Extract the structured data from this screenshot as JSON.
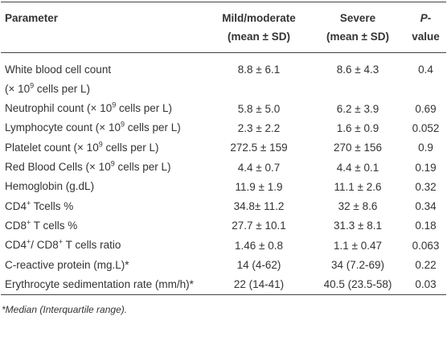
{
  "table": {
    "header": {
      "parameter": "Parameter",
      "mild": [
        "Mild/moderate",
        "(mean ± SD)"
      ],
      "severe": [
        "Severe",
        "(mean ± SD)"
      ],
      "p": [
        "P",
        "-value"
      ]
    },
    "rows": [
      {
        "parameter": [
          "White blood cell count\n(× 10",
          "9",
          " cells per L)"
        ],
        "mild": "8.8 ± 6.1",
        "severe": "8.6 ± 4.3",
        "p": "0.4"
      },
      {
        "parameter": [
          "Neutrophil count (× 10",
          "9",
          " cells per L)"
        ],
        "mild": "5.8 ± 5.0",
        "severe": "6.2 ± 3.9",
        "p": "0.69"
      },
      {
        "parameter": [
          "Lymphocyte count (× 10",
          "9",
          " cells per L)"
        ],
        "mild": "2.3 ± 2.2",
        "severe": "1.6 ± 0.9",
        "p": "0.052"
      },
      {
        "parameter": [
          "Platelet count (× 10",
          "9",
          " cells per L)"
        ],
        "mild": "272.5 ± 159",
        "severe": "270 ± 156",
        "p": "0.9"
      },
      {
        "parameter": [
          "Red Blood Cells (× 10",
          "9",
          " cells per L)"
        ],
        "mild": "4.4 ± 0.7",
        "severe": "4.4 ± 0.1",
        "p": "0.19"
      },
      {
        "parameter": [
          "Hemoglobin (g.dL)"
        ],
        "mild": "11.9 ± 1.9",
        "severe": "11.1 ± 2.6",
        "p": "0.32"
      },
      {
        "parameter": [
          "CD4",
          "+",
          " Tcells %"
        ],
        "mild": "34.8± 11.2",
        "severe": "32 ± 8.6",
        "p": "0.34"
      },
      {
        "parameter": [
          "CD8",
          "+",
          " T cells %"
        ],
        "mild": "27.7 ± 10.1",
        "severe": "31.3 ± 8.1",
        "p": "0.18"
      },
      {
        "parameter": [
          "CD4",
          "+",
          "/ CD8",
          "+",
          " T cells ratio"
        ],
        "mild": "1.46 ± 0.8",
        "severe": "1.1 ± 0.47",
        "p": "0.063"
      },
      {
        "parameter": [
          "C-reactive protein (mg.L)*"
        ],
        "mild": "14 (4-62)",
        "severe": "34 (7.2-69)",
        "p": "0.22"
      },
      {
        "parameter": [
          "Erythrocyte sedimentation rate (mm/h)*"
        ],
        "mild": "22 (14-41)",
        "severe": "40.5 (23.5-58)",
        "p": "0.03"
      }
    ],
    "footnote": "*Median (Interquartile range)."
  }
}
